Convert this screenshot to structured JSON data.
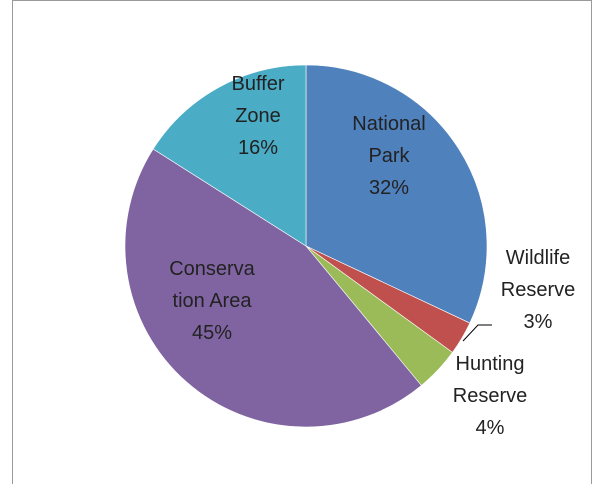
{
  "chart_data": {
    "type": "pie",
    "title": "",
    "slices": [
      {
        "label": "National Park",
        "label_lines": [
          "National",
          "Park"
        ],
        "value": 32,
        "pct_text": "32%",
        "color": "#4f81bd"
      },
      {
        "label": "Wildlife Reserve",
        "label_lines": [
          "Wildlife",
          "Reserve"
        ],
        "value": 3,
        "pct_text": "3%",
        "color": "#c0504d"
      },
      {
        "label": "Hunting Reserve",
        "label_lines": [
          "Hunting",
          "Reserve"
        ],
        "value": 4,
        "pct_text": "4%",
        "color": "#9bbb59"
      },
      {
        "label": "Conservation Area",
        "label_lines": [
          "Conserva",
          "tion Area"
        ],
        "value": 45,
        "pct_text": "45%",
        "color": "#8064a2"
      },
      {
        "label": "Buffer Zone",
        "label_lines": [
          "Buffer",
          "Zone"
        ],
        "value": 16,
        "pct_text": "16%",
        "color": "#4bacc6"
      }
    ],
    "start": "12 o'clock",
    "direction": "clockwise",
    "legend": "none",
    "data_labels": "category name and percentage"
  }
}
